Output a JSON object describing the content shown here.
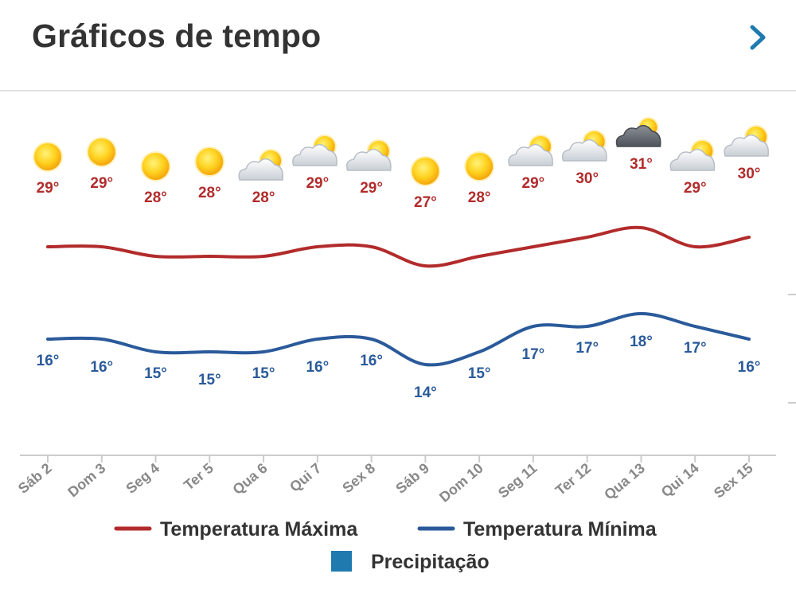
{
  "header": {
    "title": "Gráficos de tempo",
    "next_icon": "chevron-right-icon",
    "accent": "#1f7ab0"
  },
  "chart_data": {
    "type": "line",
    "title": "",
    "xlabel": "",
    "ylabel": "",
    "categories": [
      "Sáb 2",
      "Dom 3",
      "Seg 4",
      "Ter 5",
      "Qua 6",
      "Qui 7",
      "Sex 8",
      "Sáb 9",
      "Dom 10",
      "Seg 11",
      "Ter 12",
      "Qua 13",
      "Qui 14",
      "Sex 15"
    ],
    "icons": [
      "sun-icon",
      "sun-icon",
      "sun-icon",
      "sun-icon",
      "partly-cloudy-icon",
      "partly-cloudy-icon",
      "partly-cloudy-icon",
      "sun-icon",
      "sun-icon",
      "partly-cloudy-icon",
      "partly-cloudy-icon",
      "dark-cloud-icon",
      "partly-cloudy-icon",
      "partly-cloudy-icon"
    ],
    "series": [
      {
        "name": "Temperatura Máxima",
        "color": "#b22b2b",
        "values": [
          29,
          29,
          28,
          28,
          28,
          29,
          29,
          27,
          28,
          29,
          30,
          31,
          29,
          30
        ],
        "labels": [
          "29°",
          "29°",
          "28°",
          "28°",
          "28°",
          "29°",
          "29°",
          "27°",
          "28°",
          "29°",
          "30°",
          "31°",
          "29°",
          "30°"
        ]
      },
      {
        "name": "Temperatura Mínima",
        "color": "#2a5a9a",
        "values": [
          16,
          16,
          15,
          15,
          15,
          16,
          16,
          14,
          15,
          17,
          17,
          18,
          17,
          16
        ],
        "labels": [
          "16°",
          "16°",
          "15°",
          "15°",
          "15°",
          "16°",
          "16°",
          "14°",
          "15°",
          "17°",
          "17°",
          "18°",
          "17°",
          "16°"
        ]
      }
    ],
    "extra_legend": {
      "name": "Precipitação",
      "color": "#1f7ab0"
    },
    "grid": false,
    "legend_position": "bottom"
  }
}
